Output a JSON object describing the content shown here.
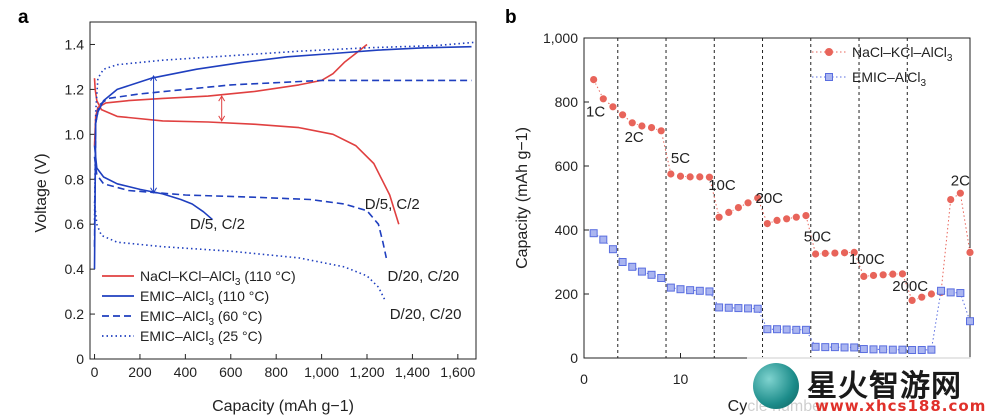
{
  "panels": {
    "a": "a",
    "b": "b"
  },
  "chart_data": [
    {
      "type": "line",
      "panel": "a",
      "xlabel": "Capacity (mAh g−1)",
      "ylabel": "Voltage (V)",
      "xlim": [
        -20,
        1680
      ],
      "ylim": [
        0,
        1.5
      ],
      "xticks": [
        "0",
        "200",
        "400",
        "600",
        "800",
        "1,000",
        "1,200",
        "1,400",
        "1,600"
      ],
      "xtick_values": [
        0,
        200,
        400,
        600,
        800,
        1000,
        1200,
        1400,
        1600
      ],
      "yticks": [
        "0",
        "0.2",
        "0.4",
        "0.6",
        "0.8",
        "1.0",
        "1.2",
        "1.4"
      ],
      "ytick_values": [
        0,
        0.2,
        0.4,
        0.6,
        0.8,
        1.0,
        1.2,
        1.4
      ],
      "series": [
        {
          "name": "NaCl–KCl–AlCl3 (110 °C)",
          "legend_main": "NaCl–KCl–AlCl",
          "legend_sub": "3",
          "legend_tail": " (110 °C)",
          "color": "#e04040",
          "dash": "solid",
          "charge": [
            [
              0,
              0.95
            ],
            [
              5,
              1.08
            ],
            [
              15,
              1.12
            ],
            [
              50,
              1.14
            ],
            [
              150,
              1.15
            ],
            [
              300,
              1.16
            ],
            [
              500,
              1.17
            ],
            [
              700,
              1.19
            ],
            [
              900,
              1.22
            ],
            [
              1000,
              1.24
            ],
            [
              1050,
              1.27
            ],
            [
              1100,
              1.32
            ],
            [
              1150,
              1.36
            ],
            [
              1200,
              1.4
            ]
          ],
          "discharge": [
            [
              0,
              1.25
            ],
            [
              3,
              1.2
            ],
            [
              10,
              1.15
            ],
            [
              30,
              1.11
            ],
            [
              100,
              1.08
            ],
            [
              300,
              1.06
            ],
            [
              500,
              1.055
            ],
            [
              700,
              1.045
            ],
            [
              900,
              1.03
            ],
            [
              1050,
              1.0
            ],
            [
              1150,
              0.95
            ],
            [
              1230,
              0.87
            ],
            [
              1300,
              0.73
            ],
            [
              1340,
              0.6
            ]
          ]
        },
        {
          "name": "EMIC–AlCl3 (110 °C)",
          "legend_main": "EMIC–AlCl",
          "legend_sub": "3",
          "legend_tail": " (110 °C)",
          "color": "#1f3fbf",
          "dash": "solid",
          "charge": [
            [
              0,
              0.4
            ],
            [
              5,
              1.05
            ],
            [
              15,
              1.1
            ],
            [
              40,
              1.15
            ],
            [
              100,
              1.2
            ],
            [
              250,
              1.25
            ],
            [
              450,
              1.29
            ],
            [
              650,
              1.32
            ],
            [
              850,
              1.345
            ],
            [
              1050,
              1.36
            ],
            [
              1250,
              1.375
            ],
            [
              1450,
              1.385
            ],
            [
              1660,
              1.39
            ]
          ],
          "discharge": [
            [
              0,
              0.95
            ],
            [
              10,
              0.85
            ],
            [
              40,
              0.81
            ],
            [
              100,
              0.78
            ],
            [
              200,
              0.755
            ],
            [
              300,
              0.735
            ],
            [
              380,
              0.71
            ],
            [
              430,
              0.69
            ],
            [
              480,
              0.655
            ],
            [
              520,
              0.62
            ]
          ]
        },
        {
          "name": "EMIC–AlCl3 (60 °C)",
          "legend_main": "EMIC–AlCl",
          "legend_sub": "3",
          "legend_tail": " (60 °C)",
          "color": "#1f3fbf",
          "dash": "dashed",
          "charge": [
            [
              0,
              0.5
            ],
            [
              5,
              1.05
            ],
            [
              20,
              1.13
            ],
            [
              60,
              1.16
            ],
            [
              200,
              1.18
            ],
            [
              400,
              1.2
            ],
            [
              600,
              1.22
            ],
            [
              800,
              1.23
            ],
            [
              1000,
              1.24
            ],
            [
              1300,
              1.24
            ],
            [
              1660,
              1.24
            ]
          ],
          "discharge": [
            [
              0,
              0.9
            ],
            [
              10,
              0.82
            ],
            [
              40,
              0.78
            ],
            [
              150,
              0.75
            ],
            [
              400,
              0.73
            ],
            [
              700,
              0.72
            ],
            [
              950,
              0.71
            ],
            [
              1100,
              0.69
            ],
            [
              1200,
              0.66
            ],
            [
              1250,
              0.6
            ],
            [
              1270,
              0.52
            ],
            [
              1285,
              0.45
            ]
          ]
        },
        {
          "name": "EMIC–AlCl3 (25 °C)",
          "legend_main": "EMIC–AlCl",
          "legend_sub": "3",
          "legend_tail": " (25 °C)",
          "color": "#1f3fbf",
          "dash": "dotted",
          "charge": [
            [
              0,
              0.6
            ],
            [
              5,
              1.1
            ],
            [
              15,
              1.25
            ],
            [
              40,
              1.29
            ],
            [
              100,
              1.31
            ],
            [
              300,
              1.33
            ],
            [
              600,
              1.35
            ],
            [
              900,
              1.37
            ],
            [
              1200,
              1.385
            ],
            [
              1500,
              1.395
            ],
            [
              1680,
              1.41
            ]
          ],
          "discharge": [
            [
              0,
              0.7
            ],
            [
              10,
              0.6
            ],
            [
              30,
              0.55
            ],
            [
              100,
              0.52
            ],
            [
              300,
              0.5
            ],
            [
              600,
              0.48
            ],
            [
              900,
              0.45
            ],
            [
              1100,
              0.41
            ],
            [
              1200,
              0.37
            ],
            [
              1250,
              0.32
            ],
            [
              1280,
              0.26
            ]
          ]
        }
      ],
      "annotations": [
        {
          "text": "D/5, C/2",
          "x": 1190,
          "y": 0.69
        },
        {
          "text": "D/5, C/2",
          "x": 420,
          "y": 0.6
        },
        {
          "text": "D/20, C/20",
          "x": 1290,
          "y": 0.37
        },
        {
          "text": "D/20, C/20",
          "x": 1300,
          "y": 0.2
        }
      ],
      "arrows": [
        {
          "x": 560,
          "y1": 1.06,
          "y2": 1.17,
          "color": "#e04040"
        },
        {
          "x": 260,
          "y1": 0.74,
          "y2": 1.26,
          "color": "#1f3fbf"
        }
      ],
      "legend_position": "bottom-left"
    },
    {
      "type": "scatter",
      "panel": "b",
      "xlabel": "Cycle number",
      "ylabel": "Capacity (mAh g−1)",
      "xlim": [
        0,
        40
      ],
      "ylim": [
        0,
        1000
      ],
      "xticks": [
        "0",
        "10"
      ],
      "xtick_values": [
        0,
        10
      ],
      "yticks": [
        "0",
        "200",
        "400",
        "600",
        "800",
        "1,000"
      ],
      "ytick_values": [
        0,
        200,
        400,
        600,
        800,
        1000
      ],
      "separators": [
        3.5,
        8.5,
        13.5,
        18.5,
        23.5,
        28.5,
        33.5
      ],
      "rate_labels": [
        {
          "text": "1C",
          "x": 1.2,
          "y": 770
        },
        {
          "text": "2C",
          "x": 5.2,
          "y": 690
        },
        {
          "text": "5C",
          "x": 10,
          "y": 625
        },
        {
          "text": "10C",
          "x": 14.3,
          "y": 540
        },
        {
          "text": "20C",
          "x": 19.2,
          "y": 500
        },
        {
          "text": "50C",
          "x": 24.2,
          "y": 380
        },
        {
          "text": "100C",
          "x": 29.3,
          "y": 310
        },
        {
          "text": "200C",
          "x": 33.8,
          "y": 225
        },
        {
          "text": "2C",
          "x": 39,
          "y": 555
        }
      ],
      "series": [
        {
          "name": "NaCl–KCl–AlCl3",
          "legend_main": "NaCl–KCl–AlCl",
          "legend_sub": "3",
          "color": "#e8645a",
          "marker": "circle",
          "x": [
            1,
            2,
            3,
            4,
            5,
            6,
            7,
            8,
            9,
            10,
            11,
            12,
            13,
            14,
            15,
            16,
            17,
            18,
            19,
            20,
            21,
            22,
            23,
            24,
            25,
            26,
            27,
            28,
            29,
            30,
            31,
            32,
            33,
            34,
            35,
            36,
            37,
            38,
            39,
            40
          ],
          "y": [
            870,
            810,
            785,
            760,
            735,
            725,
            720,
            710,
            575,
            568,
            566,
            566,
            565,
            440,
            455,
            470,
            485,
            500,
            420,
            430,
            435,
            440,
            445,
            325,
            327,
            328,
            329,
            330,
            255,
            258,
            260,
            262,
            263,
            180,
            190,
            200,
            205,
            495,
            515,
            330
          ]
        },
        {
          "name": "EMIC–AlCl3",
          "legend_main": "EMIC–AlCl",
          "legend_sub": "3",
          "color": "#5a6ee0",
          "marker": "square",
          "x": [
            1,
            2,
            3,
            4,
            5,
            6,
            7,
            8,
            9,
            10,
            11,
            12,
            13,
            14,
            15,
            16,
            17,
            18,
            19,
            20,
            21,
            22,
            23,
            24,
            25,
            26,
            27,
            28,
            29,
            30,
            31,
            32,
            33,
            34,
            35,
            36,
            37,
            38,
            39,
            40
          ],
          "y": [
            390,
            370,
            340,
            300,
            285,
            270,
            260,
            250,
            220,
            215,
            212,
            210,
            208,
            158,
            157,
            156,
            155,
            154,
            90,
            90,
            89,
            88,
            88,
            35,
            34,
            34,
            33,
            33,
            28,
            27,
            27,
            26,
            26,
            25,
            25,
            26,
            210,
            205,
            203,
            115
          ]
        }
      ],
      "legend_position": "top-right"
    }
  ],
  "watermark": {
    "title": "星火智游网",
    "url": "www.xhcs188.com"
  }
}
